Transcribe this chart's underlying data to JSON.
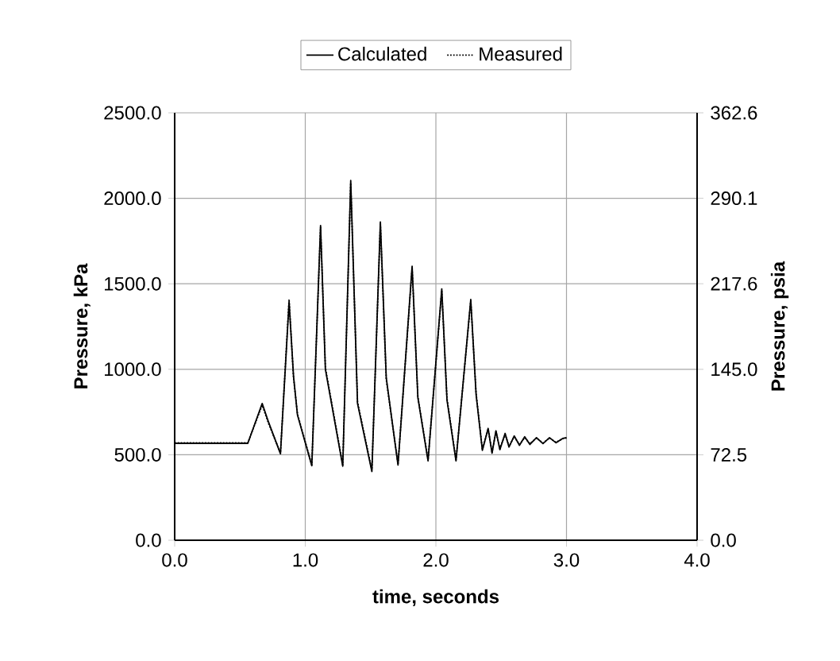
{
  "chart_data": {
    "type": "line",
    "xlabel": "time, seconds",
    "ylabel": "Pressure, kPa",
    "y2label": "Pressure, psia",
    "xlim": [
      0,
      4
    ],
    "ylim": [
      0,
      2500
    ],
    "y2lim": [
      0,
      362.6
    ],
    "xticks": [
      {
        "value": 0,
        "label": "0.0"
      },
      {
        "value": 1,
        "label": "1.0"
      },
      {
        "value": 2,
        "label": "2.0"
      },
      {
        "value": 3,
        "label": "3.0"
      },
      {
        "value": 4,
        "label": "4.0"
      }
    ],
    "yticks": [
      {
        "value": 0,
        "label": "0.0"
      },
      {
        "value": 500,
        "label": "500.0"
      },
      {
        "value": 1000,
        "label": "1000.0"
      },
      {
        "value": 1500,
        "label": "1500.0"
      },
      {
        "value": 2000,
        "label": "2000.0"
      },
      {
        "value": 2500,
        "label": "2500.0"
      }
    ],
    "y2ticks": [
      {
        "value": 0,
        "label": "0.0"
      },
      72.5,
      {
        "value": 145,
        "label": "145.0"
      },
      217.6,
      290.1,
      362.6
    ],
    "grid": true,
    "legend": "top",
    "series": [
      {
        "name": "Calculated",
        "color": "#000000",
        "line_style": "solid",
        "x": [
          0,
          0.56,
          0.67,
          0.72,
          0.81,
          0.876,
          0.91,
          0.94,
          1.05,
          1.117,
          1.154,
          1.287,
          1.348,
          1.4,
          1.51,
          1.575,
          1.62,
          1.71,
          1.818,
          1.862,
          1.94,
          2.045,
          2.085,
          2.154,
          2.267,
          2.308,
          2.356,
          2.4,
          2.43,
          2.46,
          2.49,
          2.53,
          2.56,
          2.6,
          2.64,
          2.68,
          2.72,
          2.77,
          2.82,
          2.87,
          2.92,
          2.97,
          3.0
        ],
        "values": [
          567,
          567,
          800,
          688,
          506,
          1394,
          960,
          733,
          436,
          1841,
          1000,
          433,
          2104,
          800,
          402,
          1862,
          950,
          440,
          1603,
          835,
          464,
          1470,
          820,
          464,
          1408,
          851,
          526,
          654,
          509,
          640,
          530,
          625,
          545,
          610,
          555,
          605,
          560,
          600,
          565,
          600,
          570,
          595,
          600
        ]
      },
      {
        "name": "Measured",
        "color": "#000000",
        "line_style": "dotted",
        "x": [
          0,
          0.56,
          0.67,
          0.72,
          0.81,
          0.876,
          0.91,
          0.94,
          1.05,
          1.117,
          1.154,
          1.287,
          1.348,
          1.4,
          1.51,
          1.575,
          1.62,
          1.71,
          1.818,
          1.862,
          1.94,
          2.045,
          2.085,
          2.154,
          2.267,
          2.308,
          2.356,
          2.4,
          2.43,
          2.46,
          2.49,
          2.53,
          2.56,
          2.6,
          2.64,
          2.68,
          2.72,
          2.77,
          2.82,
          2.87,
          2.92,
          2.97,
          3.0
        ],
        "values": [
          570,
          570,
          790,
          680,
          510,
          1410,
          950,
          740,
          440,
          1830,
          1010,
          440,
          2090,
          810,
          410,
          1850,
          940,
          445,
          1590,
          840,
          470,
          1460,
          830,
          470,
          1400,
          860,
          530,
          650,
          515,
          635,
          535,
          620,
          550,
          605,
          560,
          600,
          565,
          598,
          568,
          598,
          572,
          594,
          598
        ]
      }
    ]
  }
}
